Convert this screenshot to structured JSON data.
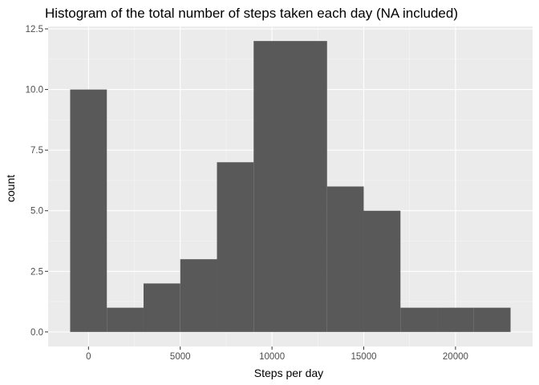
{
  "chart_data": {
    "type": "bar",
    "title": "Histogram of the total number of steps taken each day (NA included)",
    "xlabel": "Steps per day",
    "ylabel": "count",
    "bin_width": 2000,
    "bins": [
      {
        "x0": -1000,
        "x1": 1000,
        "count": 10
      },
      {
        "x0": 1000,
        "x1": 3000,
        "count": 1
      },
      {
        "x0": 3000,
        "x1": 5000,
        "count": 2
      },
      {
        "x0": 5000,
        "x1": 7000,
        "count": 3
      },
      {
        "x0": 7000,
        "x1": 9000,
        "count": 7
      },
      {
        "x0": 9000,
        "x1": 11000,
        "count": 12
      },
      {
        "x0": 11000,
        "x1": 13000,
        "count": 12
      },
      {
        "x0": 13000,
        "x1": 15000,
        "count": 6
      },
      {
        "x0": 15000,
        "x1": 17000,
        "count": 5
      },
      {
        "x0": 17000,
        "x1": 19000,
        "count": 1
      },
      {
        "x0": 19000,
        "x1": 21000,
        "count": 1
      },
      {
        "x0": 21000,
        "x1": 23000,
        "count": 1
      }
    ],
    "xlim": [
      -2200,
      24200
    ],
    "ylim": [
      -0.6,
      12.6
    ],
    "x_ticks": [
      0,
      5000,
      10000,
      15000,
      20000
    ],
    "x_tick_labels": [
      "0",
      "5000",
      "10000",
      "15000",
      "20000"
    ],
    "y_ticks": [
      0,
      2.5,
      5,
      7.5,
      10,
      12.5
    ],
    "y_tick_labels": [
      "0.0",
      "2.5",
      "5.0",
      "7.5",
      "10.0",
      "12.5"
    ],
    "grid": true,
    "colors": {
      "bar": "#595959",
      "panel_background": "#ebebeb",
      "grid_major": "#ffffff",
      "grid_minor": "#f5f5f5",
      "tick": "#333333",
      "tick_label": "#4d4d4d"
    }
  }
}
